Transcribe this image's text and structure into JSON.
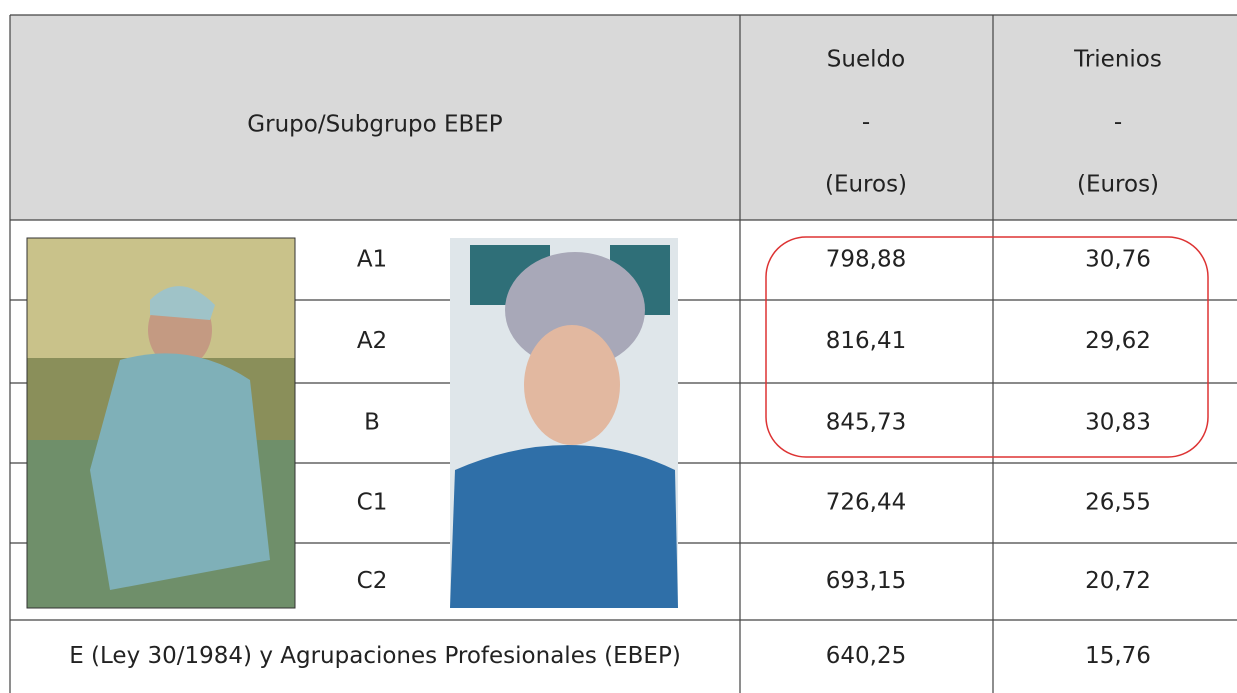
{
  "table": {
    "header": {
      "group": "Grupo/Subgrupo EBEP",
      "sueldo": [
        "Sueldo",
        "-",
        "(Euros)"
      ],
      "trienios": [
        "Trienios",
        "-",
        "(Euros)"
      ]
    },
    "rows": [
      [
        "A1",
        "798,88",
        "30,76"
      ],
      [
        "A2",
        "816,41",
        "29,62"
      ],
      [
        "B",
        "845,73",
        "30,83"
      ],
      [
        "C1",
        "726,44",
        "26,55"
      ],
      [
        "C2",
        "693,15",
        "20,72"
      ],
      [
        "E (Ley 30/1984) y Agrupaciones Profesionales (EBEP)",
        "640,25",
        "15,76"
      ]
    ]
  }
}
